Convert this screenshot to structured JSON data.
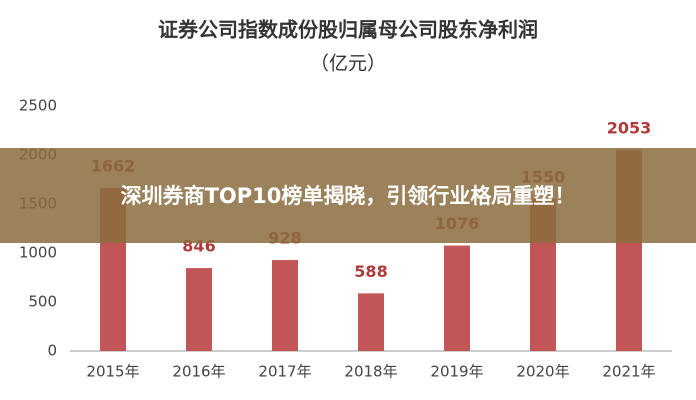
{
  "chart_data": {
    "type": "bar",
    "title": "证券公司指数成份股归属母公司股东净利润",
    "subtitle": "（亿元）",
    "categories": [
      "2015年",
      "2016年",
      "2017年",
      "2018年",
      "2019年",
      "2020年",
      "2021年"
    ],
    "values": [
      1662,
      846,
      928,
      588,
      1076,
      1550,
      2053
    ],
    "color": "#c25656",
    "ylim": [
      0,
      2500
    ],
    "yticks": [
      0,
      500,
      1000,
      1500,
      2000,
      2500
    ],
    "grid": false
  },
  "overlay": {
    "text": "深圳券商TOP10榜单揭晓，引领行业格局重塑！"
  }
}
